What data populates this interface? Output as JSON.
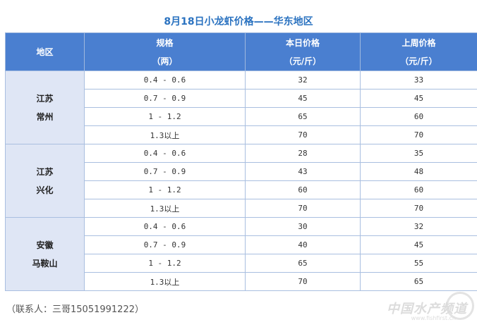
{
  "title": "8月18日小龙虾价格——华东地区",
  "headers": {
    "region": "地区",
    "spec_line1": "规格",
    "spec_line2": "（两）",
    "today_line1": "本日价格",
    "today_line2": "（元/斤）",
    "lastweek_line1": "上周价格",
    "lastweek_line2": "（元/斤）"
  },
  "regions": [
    {
      "line1": "江苏",
      "line2": "常州",
      "rows": [
        {
          "spec": "0.4 - 0.6",
          "today": "32",
          "last_week": "33"
        },
        {
          "spec": "0.7 - 0.9",
          "today": "45",
          "last_week": "45"
        },
        {
          "spec": "1 - 1.2",
          "today": "65",
          "last_week": "60"
        },
        {
          "spec": "1.3以上",
          "today": "70",
          "last_week": "70"
        }
      ]
    },
    {
      "line1": "江苏",
      "line2": "兴化",
      "rows": [
        {
          "spec": "0.4 - 0.6",
          "today": "28",
          "last_week": "35"
        },
        {
          "spec": "0.7 - 0.9",
          "today": "43",
          "last_week": "48"
        },
        {
          "spec": "1 - 1.2",
          "today": "60",
          "last_week": "60"
        },
        {
          "spec": "1.3以上",
          "today": "70",
          "last_week": "70"
        }
      ]
    },
    {
      "line1": "安徽",
      "line2": "马鞍山",
      "rows": [
        {
          "spec": "0.4 - 0.6",
          "today": "30",
          "last_week": "32"
        },
        {
          "spec": "0.7 - 0.9",
          "today": "40",
          "last_week": "45"
        },
        {
          "spec": "1 - 1.2",
          "today": "65",
          "last_week": "55"
        },
        {
          "spec": "1.3以上",
          "today": "70",
          "last_week": "65"
        }
      ]
    }
  ],
  "footer": "（联系人：三哥15051991222）",
  "watermark": "中国水产频道",
  "watermark_url": "www.fishfirst.cn",
  "colors": {
    "header_bg": "#4a7fd0",
    "title": "#2a72c0",
    "region_bg": "#dfe6f5"
  }
}
